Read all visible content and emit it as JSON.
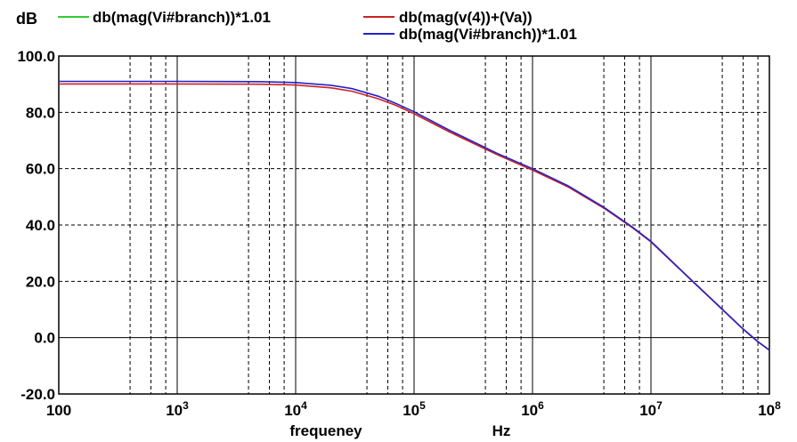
{
  "chart_data": {
    "type": "line",
    "ylabel": "dB",
    "xlabel": "frequeney",
    "xunit": "Hz",
    "x_scale": "log",
    "xlim": [
      100,
      100000000
    ],
    "ylim": [
      -20,
      100
    ],
    "grid": true,
    "x_tick_labels": [
      {
        "value": 100,
        "base": "100",
        "exp": ""
      },
      {
        "value": 1000,
        "base": "10",
        "exp": "3"
      },
      {
        "value": 10000,
        "base": "10",
        "exp": "4"
      },
      {
        "value": 100000,
        "base": "10",
        "exp": "5"
      },
      {
        "value": 1000000,
        "base": "10",
        "exp": "6"
      },
      {
        "value": 10000000,
        "base": "10",
        "exp": "7"
      },
      {
        "value": 100000000,
        "base": "10",
        "exp": "8"
      }
    ],
    "y_tick_labels": [
      {
        "value": 100,
        "label": "100.0"
      },
      {
        "value": 80,
        "label": "80.0"
      },
      {
        "value": 60,
        "label": "60.0"
      },
      {
        "value": 40,
        "label": "40.0"
      },
      {
        "value": 20,
        "label": "20.0"
      },
      {
        "value": 0,
        "label": "0.0"
      },
      {
        "value": -20,
        "label": "-20.0"
      }
    ],
    "legend": [
      {
        "label": "db(mag(Vi#branch))*1.01",
        "color": "#33cc33",
        "position": "top-left"
      },
      {
        "label": "db(mag(v(4))+(Va))",
        "color": "#cc2222",
        "position": "top-right"
      },
      {
        "label": "db(mag(Vi#branch))*1.01",
        "color": "#2222cc",
        "position": "top-right"
      }
    ],
    "series": [
      {
        "color": "#cc2222",
        "x": [
          100,
          1000,
          5000,
          10000,
          20000,
          30000,
          50000,
          70000,
          100000,
          200000,
          500000,
          1000000,
          2000000,
          4000000,
          7000000,
          10000000,
          20000000,
          40000000,
          60000000,
          80000000,
          100000000
        ],
        "y": [
          90.1,
          90.1,
          90.0,
          89.7,
          88.7,
          87.5,
          84.8,
          82.5,
          79.5,
          73.0,
          65.0,
          59.5,
          53.5,
          46.0,
          39.0,
          34.0,
          22.0,
          10.0,
          3.0,
          -1.5,
          -4.5
        ]
      },
      {
        "color": "#2222cc",
        "x": [
          100,
          1000,
          5000,
          10000,
          20000,
          30000,
          50000,
          70000,
          100000,
          200000,
          500000,
          1000000,
          2000000,
          4000000,
          7000000,
          10000000,
          20000000,
          40000000,
          60000000,
          80000000,
          100000000
        ],
        "y": [
          91.0,
          91.0,
          90.9,
          90.6,
          89.6,
          88.4,
          85.7,
          83.2,
          80.2,
          73.6,
          65.5,
          60.0,
          53.9,
          46.3,
          39.2,
          34.2,
          22.1,
          10.1,
          3.1,
          -1.4,
          -4.4
        ]
      }
    ]
  }
}
